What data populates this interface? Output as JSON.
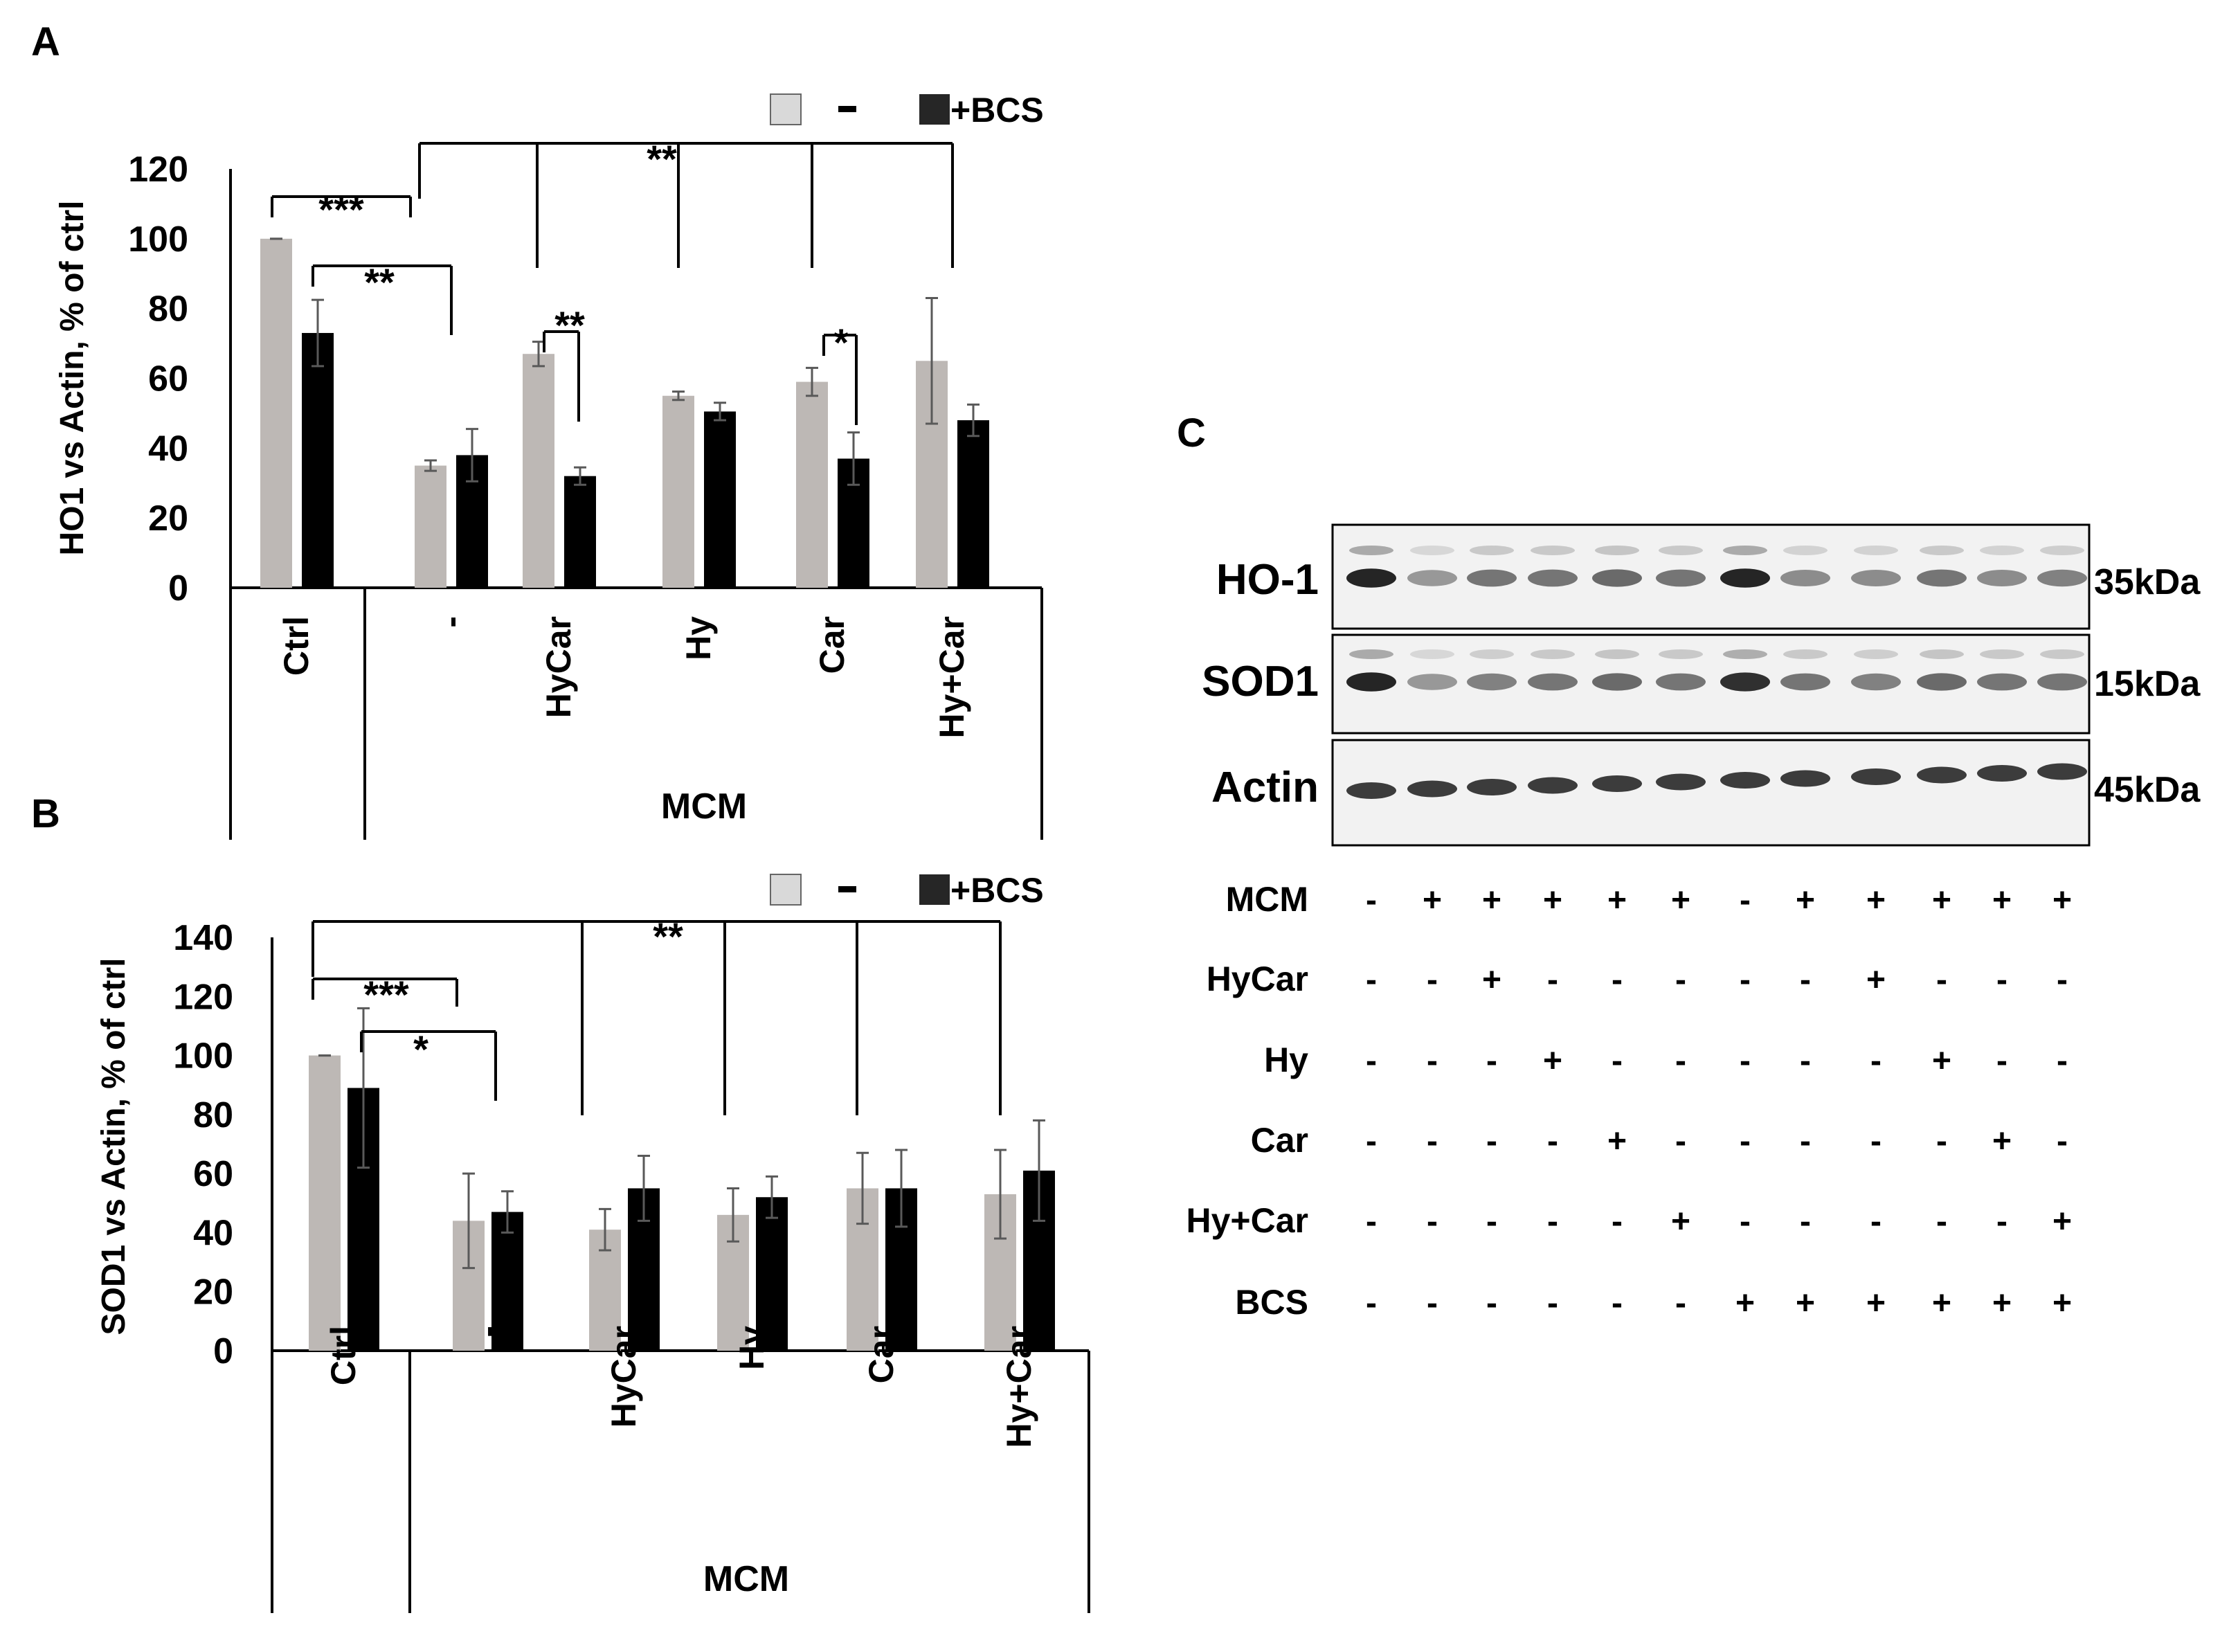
{
  "panels": {
    "A": {
      "letter": "A"
    },
    "B": {
      "letter": "B"
    },
    "C": {
      "letter": "C"
    }
  },
  "legend": {
    "minus_label": "-",
    "bcs_label": "+BCS",
    "minus_color": "#d9d9d9",
    "bcs_color": "#262626"
  },
  "colors": {
    "gray_bar": "#bdb8b5",
    "black_bar": "#000000",
    "error": "#595959"
  },
  "chart_data": [
    {
      "panel": "A",
      "type": "bar",
      "ylabel": "HO1 vs Actin, % of ctrl",
      "ylim": [
        0,
        120
      ],
      "yticks": [
        0,
        20,
        40,
        60,
        80,
        100,
        120
      ],
      "categories": [
        "Ctrl",
        "-",
        "HyCar",
        "Hy",
        "Car",
        "Hy+Car"
      ],
      "group_label": "MCM",
      "series": [
        {
          "name": "-",
          "values": [
            100,
            35,
            67,
            55,
            59,
            65
          ],
          "errors": [
            0,
            1.5,
            3.5,
            1.2,
            4,
            18
          ]
        },
        {
          "name": "+BCS",
          "values": [
            73,
            38,
            32,
            50.5,
            37,
            48
          ],
          "errors": [
            9.5,
            7.5,
            2.5,
            2.5,
            7.5,
            4.5
          ]
        }
      ],
      "significance": [
        {
          "label": "***"
        },
        {
          "label": "**"
        },
        {
          "label": "**"
        },
        {
          "label": "**"
        },
        {
          "label": "*"
        }
      ]
    },
    {
      "panel": "B",
      "type": "bar",
      "ylabel": "SOD1 vs Actin, % of ctrl",
      "ylim": [
        0,
        140
      ],
      "yticks": [
        0,
        20,
        40,
        60,
        80,
        100,
        120,
        140
      ],
      "categories": [
        "Ctrl",
        "-",
        "HyCar",
        "Hy",
        "Car",
        "Hy+Car"
      ],
      "group_label": "MCM",
      "series": [
        {
          "name": "-",
          "values": [
            100,
            44,
            41,
            46,
            55,
            53
          ],
          "errors": [
            0,
            16,
            7,
            9,
            12,
            15
          ]
        },
        {
          "name": "+BCS",
          "values": [
            89,
            47,
            55,
            52,
            55,
            61
          ],
          "errors": [
            27,
            7,
            11,
            7,
            13,
            17
          ]
        }
      ],
      "significance": [
        {
          "label": "***"
        },
        {
          "label": "*"
        },
        {
          "label": "**"
        }
      ]
    }
  ],
  "blot": {
    "bands": [
      {
        "name": "HO-1",
        "kda": "35kDa",
        "intensities": [
          0.95,
          0.45,
          0.6,
          0.6,
          0.65,
          0.6,
          0.95,
          0.5,
          0.5,
          0.6,
          0.5,
          0.55
        ]
      },
      {
        "name": "SOD1",
        "kda": "15kDa",
        "intensities": [
          0.95,
          0.45,
          0.55,
          0.6,
          0.65,
          0.6,
          0.9,
          0.6,
          0.55,
          0.65,
          0.6,
          0.6
        ]
      },
      {
        "name": "Actin",
        "kda": "45kDa",
        "intensities": [
          0.85,
          0.85,
          0.85,
          0.85,
          0.85,
          0.85,
          0.85,
          0.85,
          0.85,
          0.85,
          0.85,
          0.85
        ]
      }
    ],
    "conditions": [
      {
        "label": "MCM",
        "signs": [
          "-",
          "+",
          "+",
          "+",
          "+",
          "+",
          "-",
          "+",
          "+",
          "+",
          "+",
          "+"
        ]
      },
      {
        "label": "HyCar",
        "signs": [
          "-",
          "-",
          "+",
          "-",
          "-",
          "-",
          "-",
          "-",
          "+",
          "-",
          "-",
          "-"
        ]
      },
      {
        "label": "Hy",
        "signs": [
          "-",
          "-",
          "-",
          "+",
          "-",
          "-",
          "-",
          "-",
          "-",
          "+",
          "-",
          "-"
        ]
      },
      {
        "label": "Car",
        "signs": [
          "-",
          "-",
          "-",
          "-",
          "+",
          "-",
          "-",
          "-",
          "-",
          "-",
          "+",
          "-"
        ]
      },
      {
        "label": "Hy+Car",
        "signs": [
          "-",
          "-",
          "-",
          "-",
          "-",
          "+",
          "-",
          "-",
          "-",
          "-",
          "-",
          "+"
        ]
      },
      {
        "label": "BCS",
        "signs": [
          "-",
          "-",
          "-",
          "-",
          "-",
          "-",
          "+",
          "+",
          "+",
          "+",
          "+",
          "+"
        ]
      }
    ]
  }
}
